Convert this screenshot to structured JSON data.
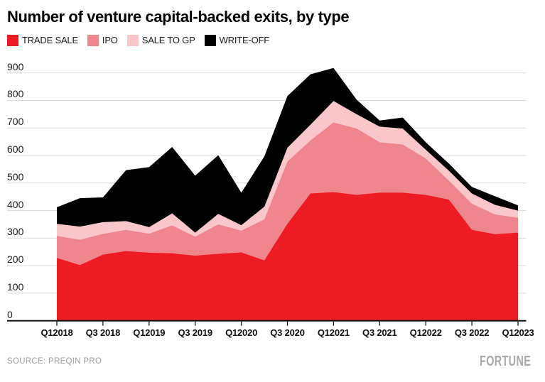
{
  "page": {
    "title": "Number of venture capital-backed exits, by type",
    "source": "SOURCE: PREQIN PRO",
    "brand": "FORTUNE"
  },
  "legend": {
    "items": [
      {
        "label": "TRADE SALE",
        "color": "#ed1c24"
      },
      {
        "label": "IPO",
        "color": "#f0868d"
      },
      {
        "label": "SALE TO GP",
        "color": "#f9c6ca"
      },
      {
        "label": "WRITE-OFF",
        "color": "#000000"
      }
    ]
  },
  "chart_data": {
    "type": "area",
    "stacked": true,
    "title": "Number of venture capital-backed exits, by type",
    "x": [
      "Q1 2018",
      "Q2 2018",
      "Q3 2018",
      "Q4 2018",
      "Q1 2019",
      "Q2 2019",
      "Q3 2019",
      "Q4 2019",
      "Q1 2020",
      "Q2 2020",
      "Q3 2020",
      "Q4 2020",
      "Q1 2021",
      "Q2 2021",
      "Q3 2021",
      "Q4 2021",
      "Q1 2022",
      "Q2 2022",
      "Q3 2022",
      "Q4 2022",
      "Q1 2023"
    ],
    "x_tick_labels": [
      {
        "label": "Q12018",
        "index": 0
      },
      {
        "label": "Q3 2018",
        "index": 2
      },
      {
        "label": "Q12019",
        "index": 4
      },
      {
        "label": "Q3 2019",
        "index": 6
      },
      {
        "label": "Q12020",
        "index": 8
      },
      {
        "label": "Q3 2020",
        "index": 10
      },
      {
        "label": "Q12021",
        "index": 12
      },
      {
        "label": "Q3 2021",
        "index": 14
      },
      {
        "label": "Q12022",
        "index": 16
      },
      {
        "label": "Q3 2022",
        "index": 18
      },
      {
        "label": "Q12023",
        "index": 20
      }
    ],
    "y_ticks": [
      0,
      100,
      200,
      300,
      400,
      500,
      600,
      700,
      800,
      900
    ],
    "ylim": [
      0,
      900
    ],
    "grid": "horizontal",
    "legend_position": "top-left",
    "series": [
      {
        "name": "TRADE SALE",
        "color": "#ed1c24",
        "values": [
          228,
          202,
          240,
          253,
          247,
          245,
          236,
          243,
          248,
          219,
          352,
          462,
          467,
          457,
          465,
          465,
          457,
          440,
          330,
          314,
          320
        ]
      },
      {
        "name": "IPO",
        "color": "#f0868d",
        "values": [
          80,
          92,
          75,
          77,
          69,
          101,
          69,
          107,
          79,
          149,
          226,
          193,
          253,
          241,
          183,
          175,
          132,
          69,
          95,
          72,
          54
        ]
      },
      {
        "name": "SALE TO GP",
        "color": "#f9c6ca",
        "values": [
          44,
          48,
          43,
          32,
          24,
          44,
          15,
          38,
          20,
          46,
          50,
          57,
          78,
          52,
          57,
          58,
          32,
          36,
          37,
          35,
          26
        ]
      },
      {
        "name": "WRITE-OFF",
        "color": "#000000",
        "values": [
          60,
          103,
          90,
          185,
          218,
          241,
          207,
          213,
          118,
          183,
          188,
          183,
          120,
          53,
          22,
          40,
          27,
          26,
          24,
          31,
          19
        ]
      }
    ],
    "colors": {
      "grid": "#d9d9d9",
      "axis": "#111111"
    }
  }
}
